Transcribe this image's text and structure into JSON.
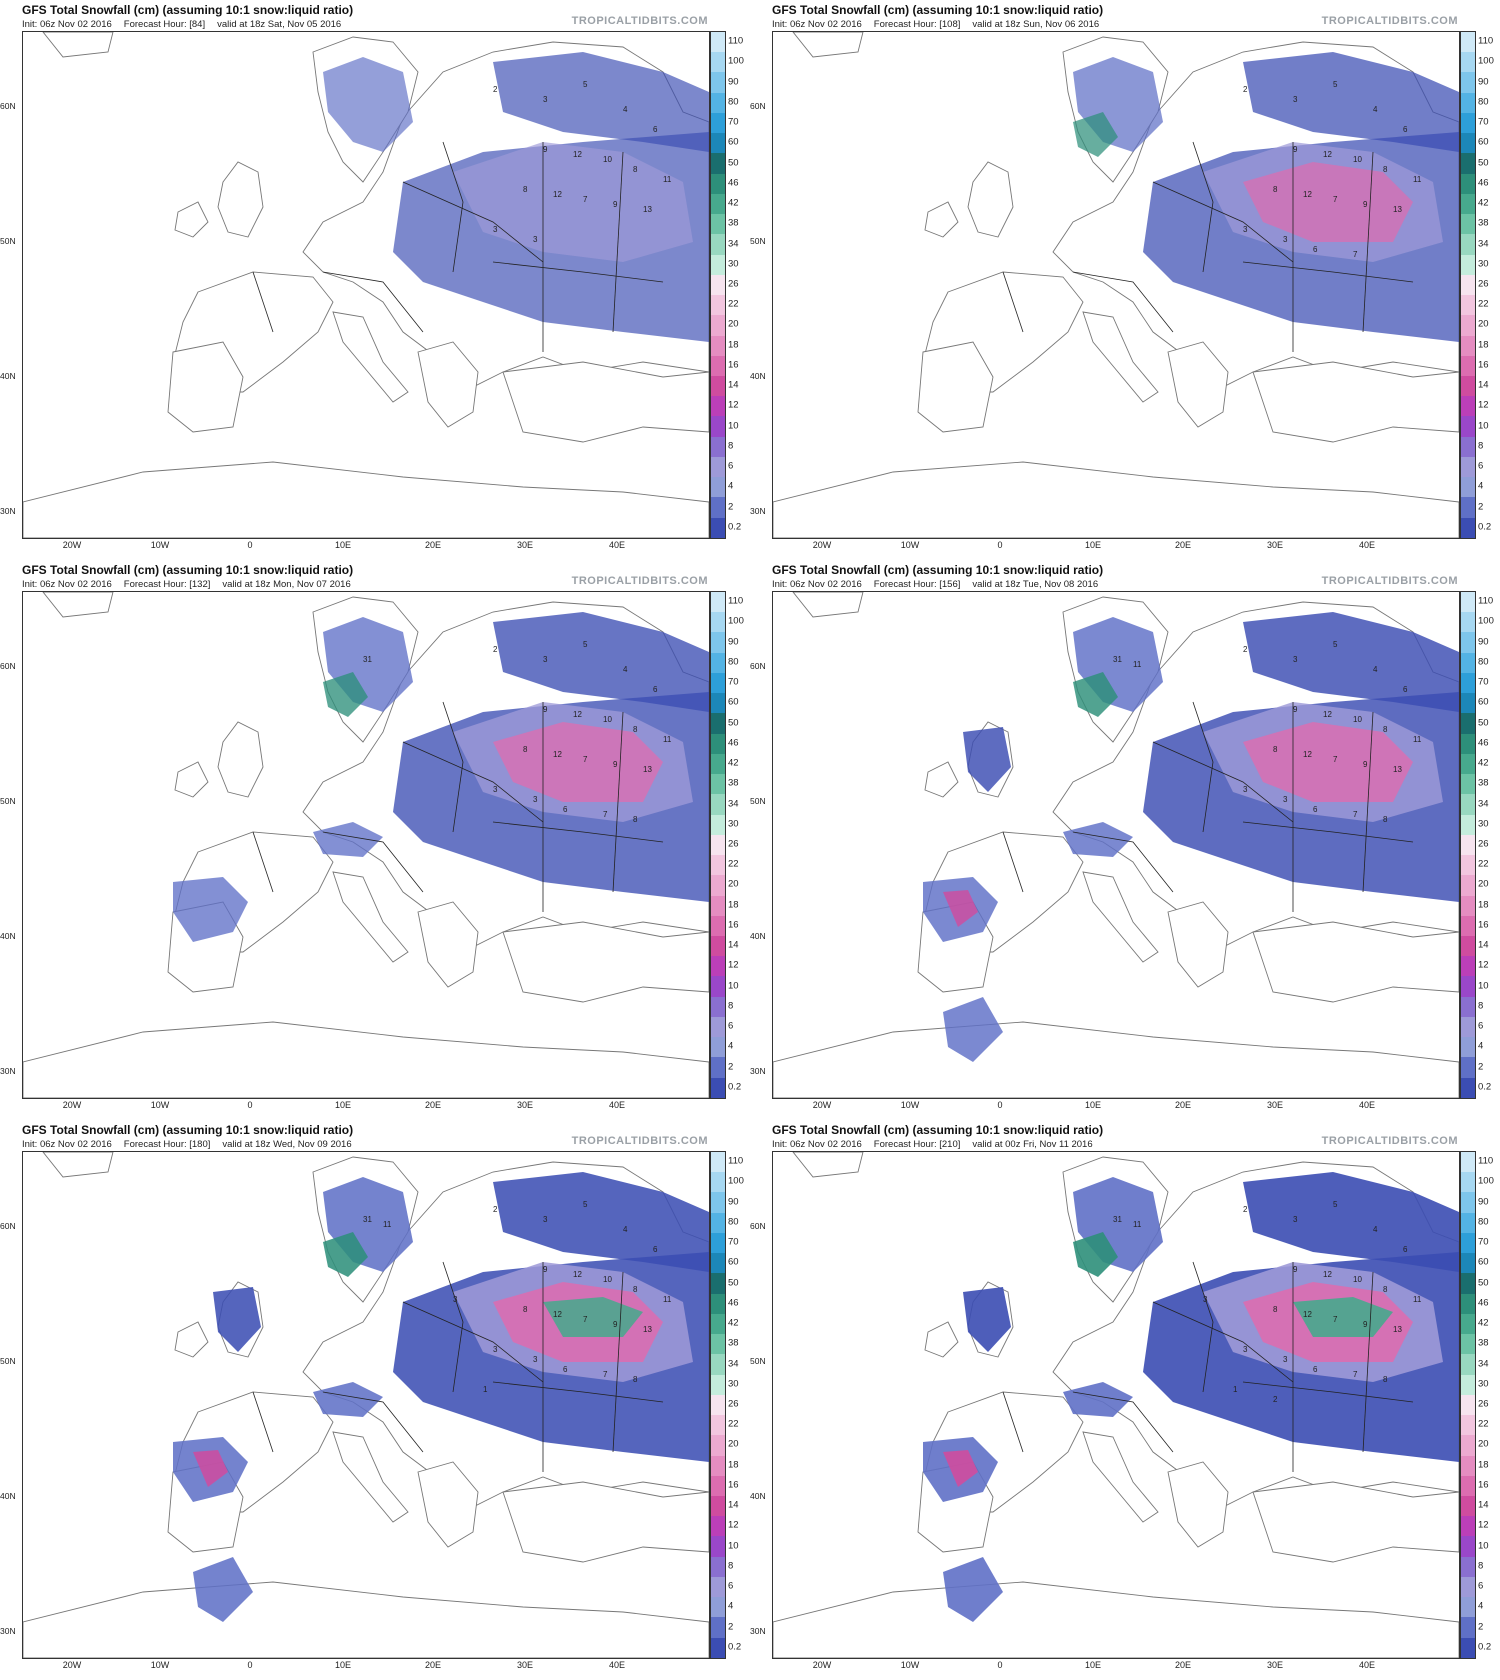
{
  "panels": [
    {
      "title": "GFS Total Snowfall (cm) (assuming 10:1 snow:liquid ratio)",
      "init": "Init: 06z Nov 02 2016",
      "forecast": "Forecast Hour: [84]",
      "valid": "valid at 18z Sat, Nov 05 2016",
      "site": "TROPICALTIDBITS.COM",
      "intensity": 0.35
    },
    {
      "title": "GFS Total Snowfall (cm) (assuming 10:1 snow:liquid ratio)",
      "init": "Init: 06z Nov 02 2016",
      "forecast": "Forecast Hour: [108]",
      "valid": "valid at 18z Sun, Nov 06 2016",
      "site": "TROPICALTIDBITS.COM",
      "intensity": 0.5
    },
    {
      "title": "GFS Total Snowfall (cm) (assuming 10:1 snow:liquid ratio)",
      "init": "Init: 06z Nov 02 2016",
      "forecast": "Forecast Hour: [132]",
      "valid": "valid at 18z Mon, Nov 07 2016",
      "site": "TROPICALTIDBITS.COM",
      "intensity": 0.65
    },
    {
      "title": "GFS Total Snowfall (cm) (assuming 10:1 snow:liquid ratio)",
      "init": "Init: 06z Nov 02 2016",
      "forecast": "Forecast Hour: [156]",
      "valid": "valid at 18z Tue, Nov 08 2016",
      "site": "TROPICALTIDBITS.COM",
      "intensity": 0.78
    },
    {
      "title": "GFS Total Snowfall (cm) (assuming 10:1 snow:liquid ratio)",
      "init": "Init: 06z Nov 02 2016",
      "forecast": "Forecast Hour: [180]",
      "valid": "valid at 18z Wed, Nov 09 2016",
      "site": "TROPICALTIDBITS.COM",
      "intensity": 0.9
    },
    {
      "title": "GFS Total Snowfall (cm) (assuming 10:1 snow:liquid ratio)",
      "init": "Init: 06z Nov 02 2016",
      "forecast": "Forecast Hour: [210]",
      "valid": "valid at 00z Fri, Nov 11 2016",
      "site": "TROPICALTIDBITS.COM",
      "intensity": 1.0
    }
  ],
  "lat_labels": [
    "60N",
    "50N",
    "40N",
    "30N"
  ],
  "lon_labels": [
    "20W",
    "10W",
    "0",
    "10E",
    "20E",
    "30E",
    "40E"
  ],
  "colorbar": {
    "labels": [
      "110",
      "100",
      "90",
      "80",
      "70",
      "60",
      "50",
      "46",
      "42",
      "38",
      "34",
      "30",
      "26",
      "22",
      "20",
      "18",
      "16",
      "14",
      "12",
      "10",
      "8",
      "6",
      "4",
      "2",
      "0.2"
    ],
    "colors": [
      "#cfe9f7",
      "#a7d8f2",
      "#7ec6ec",
      "#53b3e4",
      "#2d9fd9",
      "#1c87b8",
      "#1a6e6e",
      "#2d8f7a",
      "#47a98d",
      "#6cc3a5",
      "#98d8c0",
      "#c4ecdc",
      "#f6e4ef",
      "#f2c6df",
      "#ecaad0",
      "#e58dc1",
      "#dc6db0",
      "#cf4c9f",
      "#bb3fb8",
      "#9a47c9",
      "#8a6fd0",
      "#9e9ad8",
      "#8f9ed8",
      "#5f70c7",
      "#3b4db3"
    ]
  }
}
